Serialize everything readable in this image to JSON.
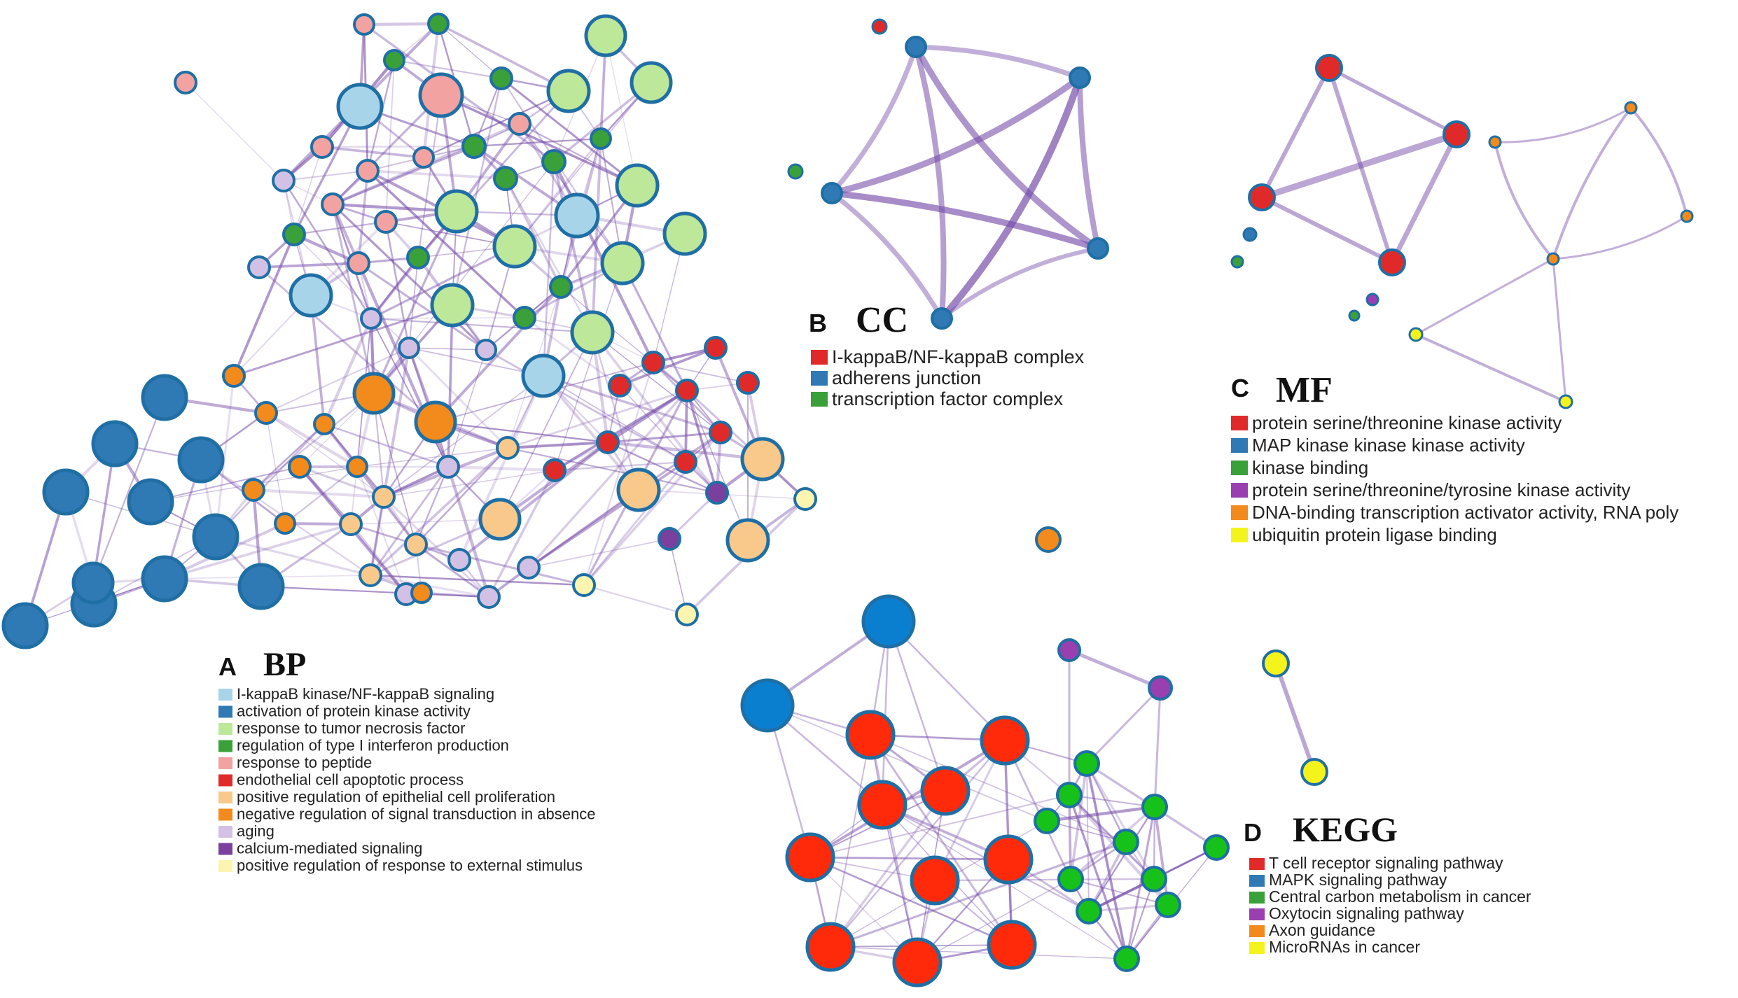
{
  "panels": [
    {
      "id": "bp",
      "letter": "A",
      "title": "BP",
      "legend": [
        {
          "label": "I-kappaB kinase/NF-kappaB signaling",
          "color": "#a8d4ea"
        },
        {
          "label": "activation of protein kinase activity",
          "color": "#2f79b5"
        },
        {
          "label": "response to tumor necrosis factor",
          "color": "#bde89a"
        },
        {
          "label": "regulation of type I interferon production",
          "color": "#3aa03a"
        },
        {
          "label": "response to peptide",
          "color": "#f3a2a2"
        },
        {
          "label": "endothelial cell apoptotic process",
          "color": "#e02a2a"
        },
        {
          "label": "positive regulation of epithelial cell proliferation",
          "color": "#f8c98b"
        },
        {
          "label": "negative regulation of signal transduction in absence",
          "color": "#f28a1c"
        },
        {
          "label": "aging",
          "color": "#d2c1e4"
        },
        {
          "label": "calcium-mediated signaling",
          "color": "#7b3f9e"
        },
        {
          "label": "positive regulation of response to external stimulus",
          "color": "#fbf5b0"
        }
      ]
    },
    {
      "id": "cc",
      "letter": "B",
      "title": "CC",
      "legend": [
        {
          "label": "I-kappaB/NF-kappaB complex",
          "color": "#e02a2a"
        },
        {
          "label": "adherens junction",
          "color": "#2f79b5"
        },
        {
          "label": "transcription factor complex",
          "color": "#3aa03a"
        }
      ]
    },
    {
      "id": "mf",
      "letter": "C",
      "title": "MF",
      "legend": [
        {
          "label": "protein serine/threonine kinase activity",
          "color": "#e02a2a"
        },
        {
          "label": "MAP kinase kinase kinase activity",
          "color": "#2f79b5"
        },
        {
          "label": "kinase binding",
          "color": "#3aa03a"
        },
        {
          "label": "protein serine/threonine/tyrosine kinase activity",
          "color": "#9a3fb0"
        },
        {
          "label": "DNA-binding transcription activator activity, RNA poly",
          "color": "#f28a1c"
        },
        {
          "label": "ubiquitin protein ligase binding",
          "color": "#f5f31c"
        }
      ]
    },
    {
      "id": "kegg",
      "letter": "D",
      "title": "KEGG",
      "legend": [
        {
          "label": "T cell receptor signaling pathway",
          "color": "#e02a2a"
        },
        {
          "label": "MAPK signaling pathway",
          "color": "#2f79b5"
        },
        {
          "label": "Central carbon metabolism in cancer",
          "color": "#3aa03a"
        },
        {
          "label": "Oxytocin signaling pathway",
          "color": "#9a3fb0"
        },
        {
          "label": "Axon guidance",
          "color": "#f28a1c"
        },
        {
          "label": "MicroRNAs in cancer",
          "color": "#f5f31c"
        }
      ]
    }
  ]
}
